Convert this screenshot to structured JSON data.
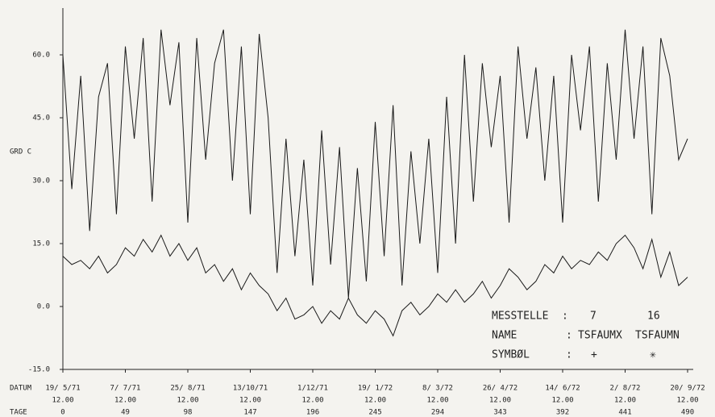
{
  "chart_data": {
    "type": "line",
    "ylabel": "GRD C",
    "x": [
      0,
      7,
      14,
      21,
      28,
      35,
      42,
      49,
      56,
      63,
      70,
      77,
      84,
      91,
      98,
      105,
      112,
      119,
      126,
      133,
      140,
      147,
      154,
      161,
      168,
      175,
      182,
      189,
      196,
      203,
      210,
      217,
      224,
      231,
      238,
      245,
      252,
      259,
      266,
      273,
      280,
      287,
      294,
      301,
      308,
      315,
      322,
      329,
      336,
      343,
      350,
      357,
      364,
      371,
      378,
      385,
      392,
      399,
      406,
      413,
      420,
      427,
      434,
      441,
      448,
      455,
      462,
      469,
      476,
      483,
      490
    ],
    "series": [
      {
        "name": "TSFAUMX",
        "color": "#1a1a1a",
        "values": [
          60,
          28,
          55,
          18,
          50,
          58,
          22,
          62,
          40,
          64,
          25,
          66,
          48,
          63,
          20,
          64,
          35,
          58,
          66,
          30,
          62,
          22,
          65,
          45,
          8,
          40,
          12,
          35,
          5,
          42,
          10,
          38,
          2,
          33,
          6,
          44,
          12,
          48,
          5,
          37,
          15,
          40,
          8,
          50,
          15,
          60,
          25,
          58,
          38,
          55,
          20,
          62,
          40,
          57,
          30,
          55,
          20,
          60,
          42,
          62,
          25,
          58,
          35,
          66,
          40,
          62,
          22,
          64,
          55,
          35,
          40
        ]
      },
      {
        "name": "TSFAUMN",
        "color": "#1a1a1a",
        "values": [
          12,
          10,
          11,
          9,
          12,
          8,
          10,
          14,
          12,
          16,
          13,
          17,
          12,
          15,
          11,
          14,
          8,
          10,
          6,
          9,
          4,
          8,
          5,
          3,
          -1,
          2,
          -3,
          -2,
          0,
          -4,
          -1,
          -3,
          2,
          -2,
          -4,
          -1,
          -3,
          -7,
          -1,
          1,
          -2,
          0,
          3,
          1,
          4,
          1,
          3,
          6,
          2,
          5,
          9,
          7,
          4,
          6,
          10,
          8,
          12,
          9,
          11,
          10,
          13,
          11,
          15,
          17,
          14,
          9,
          16,
          7,
          13,
          5,
          7
        ]
      }
    ],
    "xlim": [
      0,
      490
    ],
    "xticks": [
      0,
      49,
      98,
      147,
      196,
      245,
      294,
      343,
      392,
      441,
      490
    ],
    "date_labels": [
      "19/ 5/71",
      "7/ 7/71",
      "25/ 8/71",
      "13/10/71",
      "1/12/71",
      "19/ 1/72",
      "8/ 3/72",
      "26/ 4/72",
      "14/ 6/72",
      "2/ 8/72",
      "20/ 9/72"
    ],
    "time_label": "12.00",
    "row_labels": [
      "DATUM",
      "TAGE"
    ],
    "ylim": [
      -15,
      70
    ],
    "yticks": [
      {
        "value": -15,
        "label": "-15.0"
      },
      {
        "value": 0,
        "label": "0.0"
      },
      {
        "value": 15,
        "label": "15.0"
      },
      {
        "value": 30,
        "label": "30.0"
      },
      {
        "value": 45,
        "label": "45.0"
      },
      {
        "value": 60,
        "label": "60.0"
      }
    ],
    "legend": {
      "headers": [
        "MESSTELLE",
        "NAME",
        "SYMBØL"
      ],
      "separator": ":",
      "ids": [
        "7",
        "16"
      ],
      "symbols": [
        "+",
        "✳"
      ]
    }
  }
}
